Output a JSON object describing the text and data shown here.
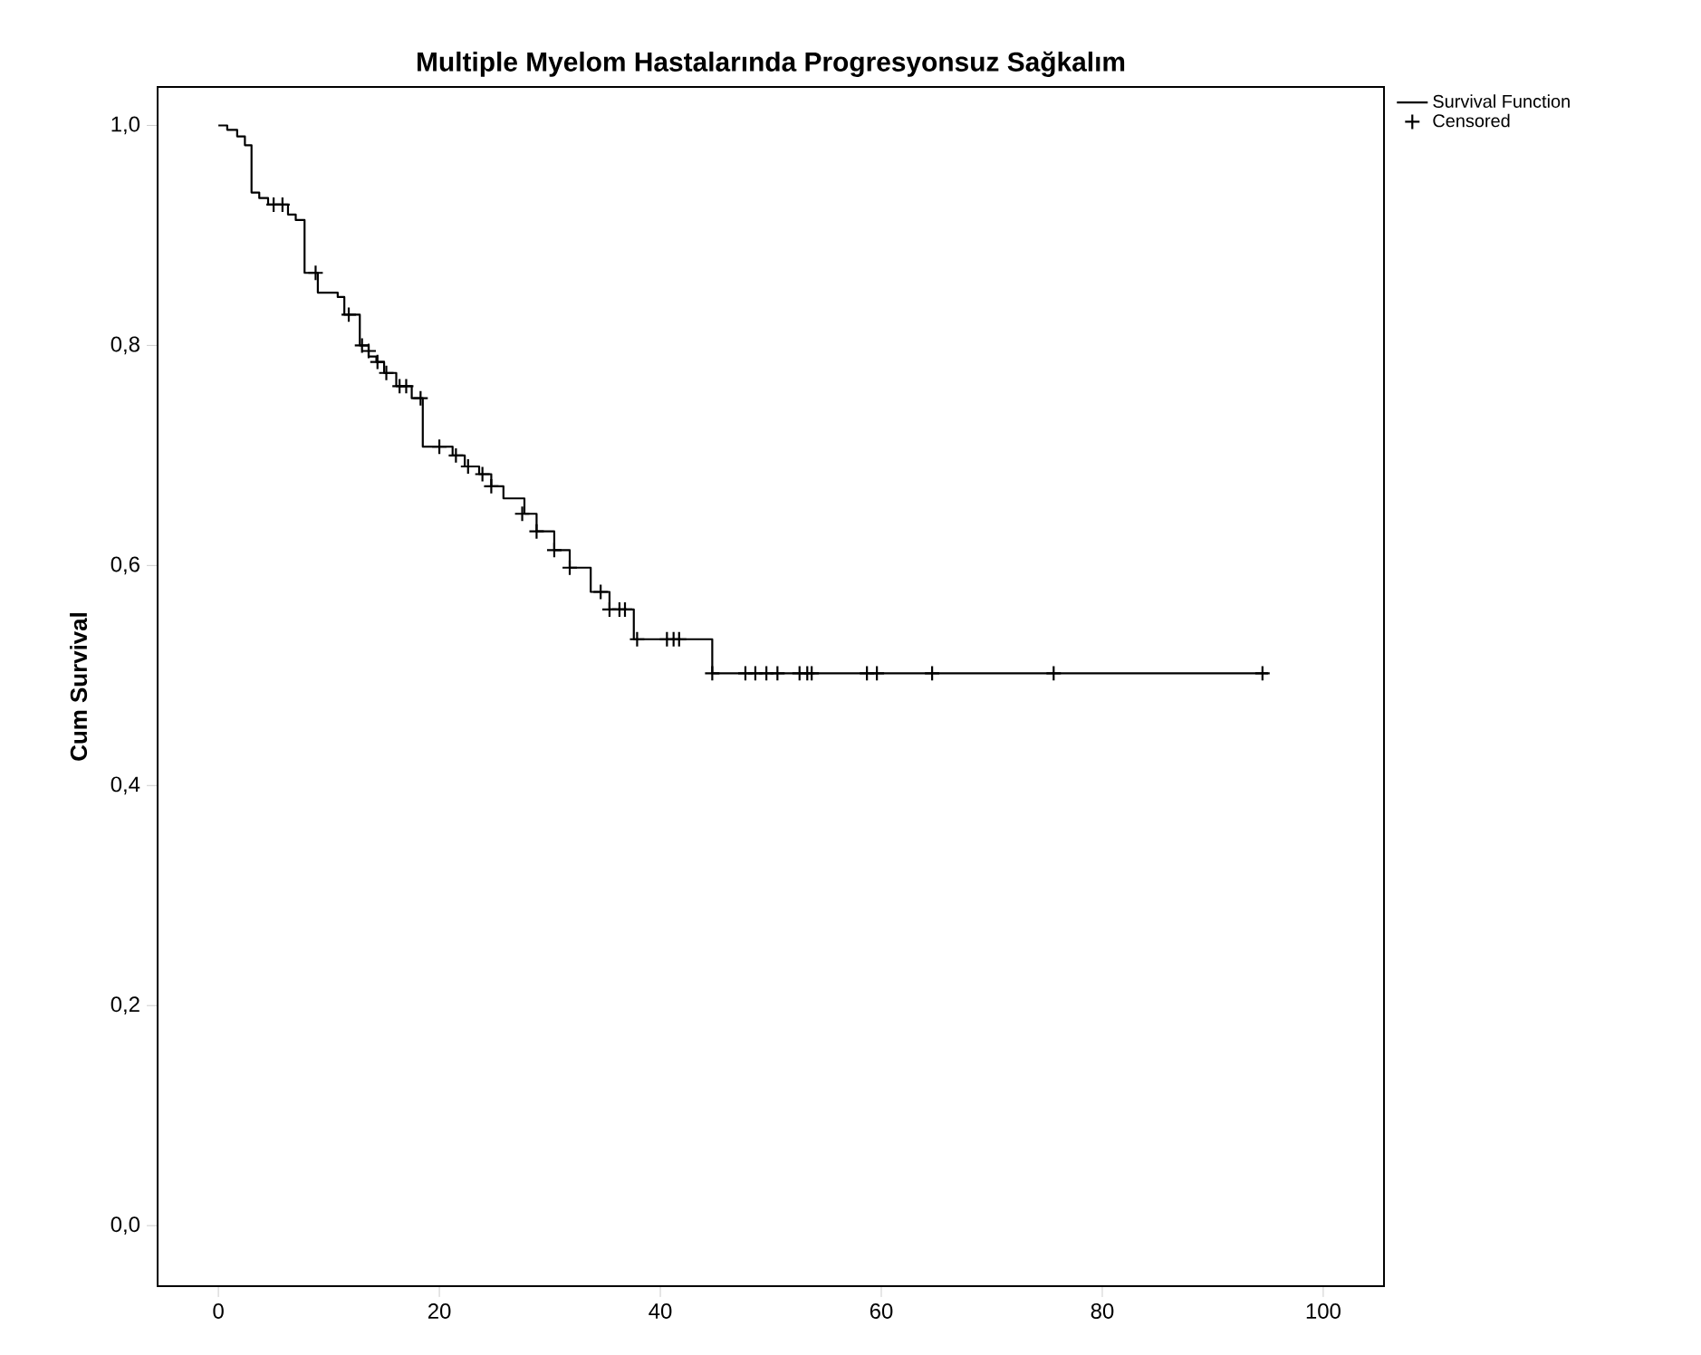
{
  "chart_data": {
    "type": "step",
    "title": "Multiple Myelom Hastalarında Progresyonsuz Sağkalım",
    "ylabel": "Cum Survival",
    "xlim": [
      -5.5,
      105.5
    ],
    "ylim": [
      -0.055,
      1.035
    ],
    "xticks": [
      0,
      20,
      40,
      60,
      80,
      100
    ],
    "yticks": [
      {
        "value": 0,
        "label": "0,0"
      },
      {
        "value": 0.2,
        "label": "0,2"
      },
      {
        "value": 0.4,
        "label": "0,4"
      },
      {
        "value": 0.6,
        "label": "0,6"
      },
      {
        "value": 0.8,
        "label": "0,8"
      },
      {
        "value": 1,
        "label": "1,0"
      }
    ],
    "grid": false,
    "legend": "top right",
    "series": [
      {
        "name": "Survival Function",
        "color": "#000000",
        "x": [
          0,
          0.8,
          1.7,
          2.4,
          3.0,
          3.7,
          4.5,
          6.3,
          7.0,
          7.8,
          9.0,
          10.8,
          11.4,
          12.8,
          13.6,
          14.3,
          15.0,
          16.1,
          17.5,
          18.5,
          21.2,
          22.3,
          23.6,
          24.7,
          25.8,
          27.7,
          28.8,
          30.4,
          31.8,
          33.7,
          35.4,
          37.6,
          44.7,
          95
        ],
        "values": [
          1.0,
          0.996,
          0.99,
          0.982,
          0.939,
          0.934,
          0.928,
          0.919,
          0.914,
          0.866,
          0.848,
          0.844,
          0.828,
          0.8,
          0.79,
          0.785,
          0.775,
          0.763,
          0.752,
          0.708,
          0.7,
          0.69,
          0.683,
          0.672,
          0.661,
          0.647,
          0.631,
          0.614,
          0.598,
          0.576,
          0.56,
          0.533,
          0.502,
          0.502
        ]
      },
      {
        "name": "Censored",
        "type": "scatter",
        "marker": "cross",
        "color": "#000000",
        "x": [
          5.0,
          5.8,
          8.8,
          11.8,
          13.0,
          13.6,
          14.4,
          15.2,
          16.4,
          17.0,
          18.3,
          20.0,
          21.5,
          22.6,
          23.9,
          24.7,
          27.5,
          28.8,
          30.4,
          31.8,
          34.6,
          35.4,
          36.3,
          36.8,
          37.9,
          40.6,
          41.2,
          41.7,
          44.7,
          47.7,
          48.6,
          49.6,
          50.6,
          52.6,
          53.3,
          53.7,
          58.7,
          59.6,
          64.6,
          75.6,
          94.5
        ],
        "values": [
          0.928,
          0.928,
          0.866,
          0.828,
          0.8,
          0.795,
          0.785,
          0.775,
          0.763,
          0.763,
          0.752,
          0.708,
          0.7,
          0.69,
          0.683,
          0.672,
          0.647,
          0.631,
          0.614,
          0.598,
          0.576,
          0.56,
          0.56,
          0.56,
          0.533,
          0.533,
          0.533,
          0.533,
          0.502,
          0.502,
          0.502,
          0.502,
          0.502,
          0.502,
          0.502,
          0.502,
          0.502,
          0.502,
          0.502,
          0.502,
          0.502
        ]
      }
    ]
  }
}
